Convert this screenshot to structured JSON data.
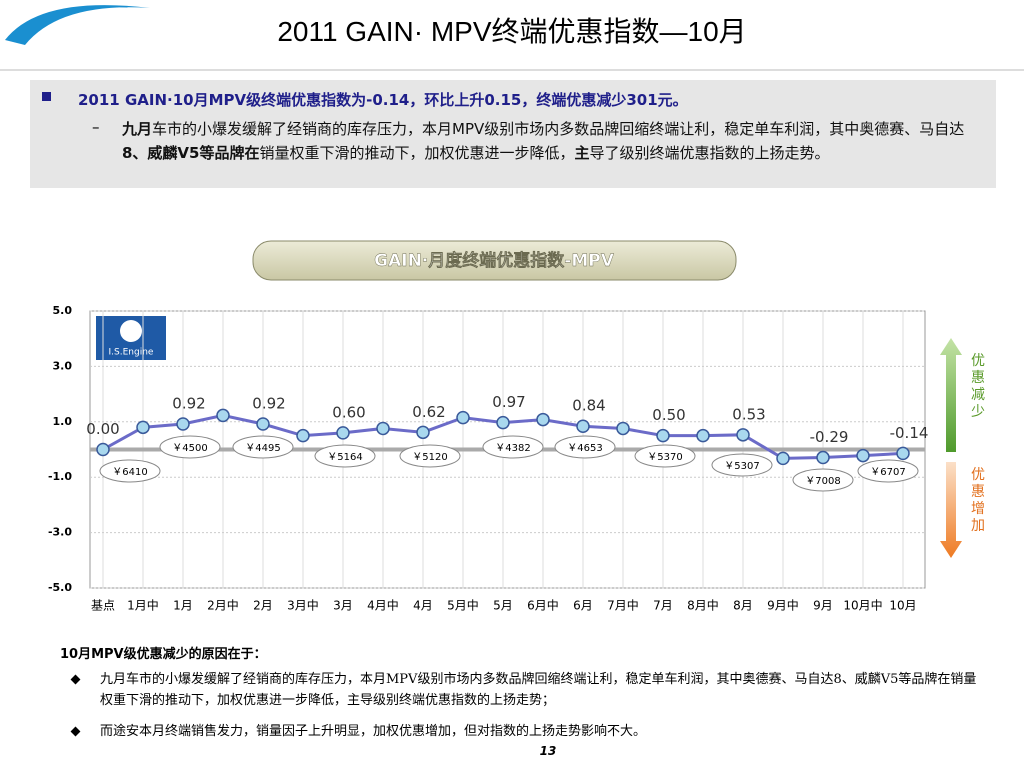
{
  "header": {
    "title": "2011 GAIN· MPV终端优惠指数—10月"
  },
  "summary": {
    "headline": "2011 GAIN·10月MPV级终端优惠指数为-0.14，环比上升0.15，终端优惠减少301元。",
    "detail": [
      {
        "text": "九月",
        "bold": true
      },
      {
        "text": "车市的小爆发缓解了经销商的库存压力，本月MPV级别市场内多数品牌回缩终端让利，稳定单车利润，其中奥德赛、马自达",
        "bold": false
      },
      {
        "text": "8、威麟V5等品牌在",
        "bold": true
      },
      {
        "text": "销量权重下滑的推动下，加权优惠进一步降低，",
        "bold": false
      },
      {
        "text": "主",
        "bold": true
      },
      {
        "text": "导了级别终端优惠指数的上扬走势。",
        "bold": false
      }
    ]
  },
  "chart_data": {
    "type": "line",
    "title": "GAIN·月度终端优惠指数-MPV",
    "logo": "I.S.Engine",
    "categories": [
      "基点",
      "1月中",
      "1月",
      "2月中",
      "2月",
      "3月中",
      "3月",
      "4月中",
      "4月",
      "5月中",
      "5月",
      "6月中",
      "6月",
      "7月中",
      "7月",
      "8月中",
      "8月",
      "9月中",
      "9月",
      "10月中",
      "10月"
    ],
    "series": [
      {
        "name": "MPV",
        "color": "#6b6bc8",
        "values": [
          0,
          0.8,
          0.92,
          1.23,
          0.92,
          0.5,
          0.6,
          0.76,
          0.62,
          1.15,
          0.97,
          1.08,
          0.84,
          0.76,
          0.5,
          0.5,
          0.53,
          -0.32,
          -0.29,
          -0.22,
          -0.14
        ],
        "value_labels": [
          "0.00",
          null,
          "0.92",
          null,
          "0.92",
          null,
          "0.60",
          null,
          "0.62",
          null,
          "0.97",
          null,
          "0.84",
          null,
          "0.50",
          null,
          "0.53",
          null,
          "-0.29",
          null,
          "-0.14"
        ]
      }
    ],
    "price_labels": [
      "￥6410",
      null,
      "￥4500",
      null,
      "￥4495",
      null,
      "￥5164",
      null,
      "￥5120",
      null,
      "￥4382",
      null,
      "￥4653",
      null,
      "￥5370",
      null,
      "￥5307",
      null,
      "￥7008",
      null,
      "￥6707"
    ],
    "ylim": [
      -5,
      5
    ],
    "yticks": [
      {
        "value": 5,
        "label": "5.0"
      },
      {
        "value": 3,
        "label": "3.0"
      },
      {
        "value": 1,
        "label": "1.0"
      },
      {
        "value": -1,
        "label": "-1.0"
      },
      {
        "value": -3,
        "label": "-3.0"
      },
      {
        "value": -5,
        "label": "-5.0"
      }
    ],
    "grid": true,
    "annotations": {
      "up": "优惠减少",
      "down": "优惠增加"
    }
  },
  "notes": {
    "heading": "10月MPV级优惠减少的原因在于：",
    "bullets": [
      "九月车市的小爆发缓解了经销商的库存压力，本月MPV级别市场内多数品牌回缩终端让利，稳定单车利润，其中奥德赛、马自达8、威麟V5等品牌在销量权重下滑的推动下，加权优惠进一步降低，主导级别终端优惠指数的上扬走势；",
      "而途安本月终端销售发力，销量因子上升明显，加权优惠增加，但对指数的上扬走势影响不大。"
    ]
  },
  "footer": {
    "page": "13"
  }
}
